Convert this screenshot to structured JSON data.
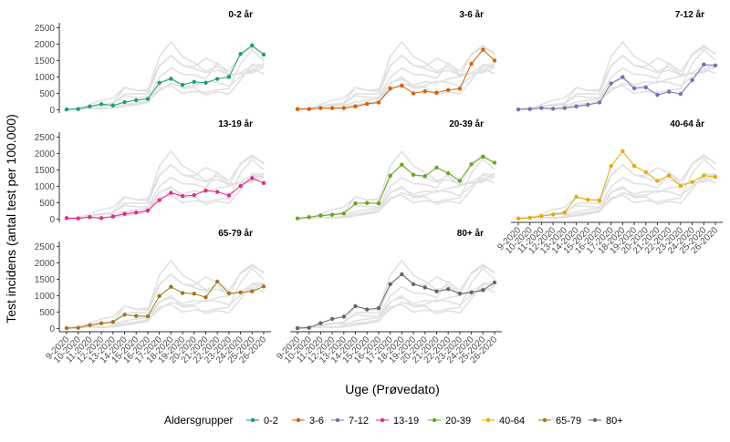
{
  "chart_data": {
    "type": "line",
    "y_label": "Test incidens (antal test per 100.000)",
    "x_label": "Uge (Prøvedato)",
    "legend_title": "Aldersgrupper",
    "categories": [
      "9-2020",
      "10-2020",
      "11-2020",
      "12-2020",
      "13-2020",
      "14-2020",
      "15-2020",
      "16-2020",
      "17-2020",
      "18-2020",
      "19-2020",
      "20-2020",
      "21-2020",
      "22-2020",
      "23-2020",
      "24-2020",
      "25-2020",
      "26-2020"
    ],
    "ylim": [
      -100,
      2650
    ],
    "yticks": [
      0,
      500,
      1000,
      1500,
      2000,
      2500
    ],
    "series": [
      {
        "name": "0-2",
        "title": "0-2 år",
        "color": "#1b9e77",
        "values": [
          10,
          20,
          100,
          170,
          130,
          230,
          290,
          330,
          820,
          940,
          760,
          850,
          820,
          940,
          1000,
          1700,
          1960,
          1680
        ]
      },
      {
        "name": "3-6",
        "title": "3-6 år",
        "color": "#d95f02",
        "values": [
          20,
          20,
          50,
          50,
          50,
          100,
          180,
          220,
          650,
          730,
          500,
          560,
          520,
          600,
          640,
          1400,
          1830,
          1500
        ]
      },
      {
        "name": "7-12",
        "title": "7-12 år",
        "color": "#7570b3",
        "values": [
          10,
          20,
          50,
          30,
          50,
          100,
          150,
          220,
          800,
          1000,
          650,
          680,
          450,
          550,
          480,
          900,
          1380,
          1350
        ]
      },
      {
        "name": "13-19",
        "title": "13-19 år",
        "color": "#e7298a",
        "values": [
          30,
          20,
          60,
          30,
          80,
          160,
          200,
          260,
          580,
          800,
          700,
          730,
          870,
          830,
          720,
          1010,
          1250,
          1100
        ]
      },
      {
        "name": "20-39",
        "title": "20-39 år",
        "color": "#66a61e",
        "values": [
          20,
          60,
          110,
          130,
          170,
          480,
          490,
          480,
          1320,
          1660,
          1350,
          1310,
          1570,
          1400,
          1170,
          1670,
          1900,
          1720
        ]
      },
      {
        "name": "40-64",
        "title": "40-64 år",
        "color": "#e6ab02",
        "values": [
          20,
          40,
          90,
          140,
          200,
          680,
          590,
          560,
          1620,
          2070,
          1620,
          1430,
          1170,
          1320,
          1010,
          1130,
          1330,
          1290
        ]
      },
      {
        "name": "65-79",
        "title": "65-79 år",
        "color": "#a6761d",
        "values": [
          10,
          20,
          100,
          160,
          200,
          420,
          380,
          370,
          990,
          1270,
          1080,
          1060,
          950,
          1430,
          1070,
          1100,
          1130,
          1280
        ]
      },
      {
        "name": "80+",
        "title": "80+ år",
        "color": "#666666",
        "values": [
          10,
          20,
          160,
          290,
          360,
          680,
          580,
          620,
          1350,
          1650,
          1350,
          1250,
          1130,
          1200,
          1060,
          1100,
          1170,
          1400
        ]
      }
    ]
  }
}
